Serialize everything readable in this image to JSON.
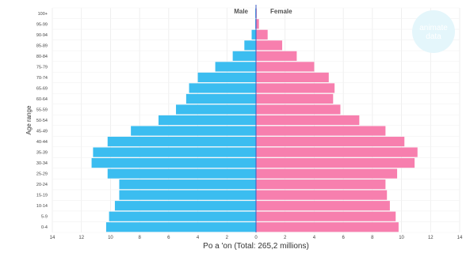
{
  "chart_data": {
    "type": "bar",
    "orientation": "horizontal-population-pyramid",
    "categories": [
      "0-4",
      "5-9",
      "10-14",
      "15-19",
      "20-24",
      "25-29",
      "30-34",
      "35-39",
      "40-44",
      "45-49",
      "50-54",
      "55-59",
      "60-64",
      "65-69",
      "70-74",
      "75-79",
      "80-84",
      "85-89",
      "90-94",
      "95-99",
      "100+"
    ],
    "series": [
      {
        "name": "Male",
        "side": "left",
        "color": "#3bbdf0",
        "values": [
          10.3,
          10.1,
          9.7,
          9.4,
          9.4,
          10.2,
          11.3,
          11.2,
          10.2,
          8.6,
          6.7,
          5.5,
          4.8,
          4.6,
          4.0,
          2.8,
          1.6,
          0.8,
          0.3,
          0.05,
          0.05
        ]
      },
      {
        "name": "Female",
        "side": "right",
        "color": "#f77fae",
        "values": [
          9.8,
          9.6,
          9.2,
          9.0,
          8.9,
          9.7,
          10.9,
          11.1,
          10.2,
          8.9,
          7.1,
          5.8,
          5.3,
          5.4,
          5.0,
          4.0,
          2.8,
          1.8,
          0.8,
          0.2,
          0.05
        ]
      }
    ],
    "xticks": [
      "14",
      "12",
      "10",
      "8",
      "6",
      "4",
      "2",
      "0",
      "2",
      "4",
      "6",
      "8",
      "10",
      "12",
      "14"
    ],
    "xlim": [
      -14,
      14
    ],
    "xlabel": "Po   a  'on (Total: 265,2 millions)",
    "ylabel": "Age range",
    "grid": true
  },
  "watermark": {
    "line1": "animate",
    "line2": "data"
  }
}
